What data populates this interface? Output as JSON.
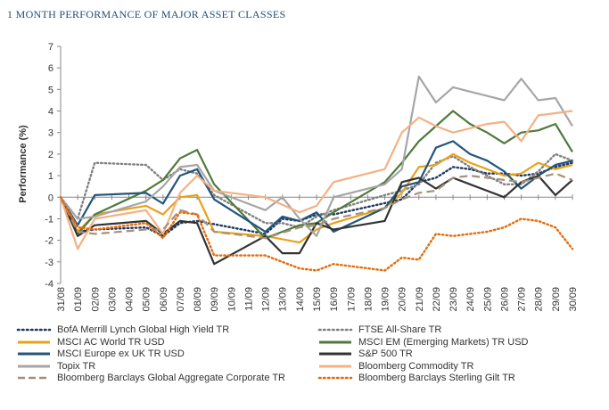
{
  "title": "1 MONTH PERFORMANCE OF MAJOR ASSET CLASSES",
  "chart_data": {
    "type": "line",
    "ylabel": "Performance (%)",
    "xlabel": "",
    "ylim": [
      -4,
      7
    ],
    "yticks": [
      -4,
      -3,
      -2,
      -1,
      0,
      1,
      2,
      3,
      4,
      5,
      6,
      7
    ],
    "grid": false,
    "legend_position": "bottom",
    "x": [
      "31/08",
      "01/09",
      "02/09",
      "03/09",
      "04/09",
      "05/09",
      "06/09",
      "07/09",
      "08/09",
      "09/09",
      "10/09",
      "11/09",
      "12/09",
      "13/09",
      "14/09",
      "15/09",
      "16/09",
      "17/09",
      "18/09",
      "19/09",
      "20/09",
      "21/09",
      "22/09",
      "23/09",
      "24/09",
      "25/09",
      "26/09",
      "27/09",
      "28/09",
      "29/09",
      "30/09"
    ],
    "series": [
      {
        "name": "BofA Merrill Lynch Global High Yield TR",
        "color": "#1f3864",
        "dash": "dotted",
        "points": [
          [
            0,
            0
          ],
          [
            1,
            -1.6
          ],
          [
            2,
            -1.5
          ],
          [
            5,
            -1.4
          ],
          [
            6,
            -1.8
          ],
          [
            7,
            -1.2
          ],
          [
            8,
            -1.1
          ],
          [
            12,
            -1.7
          ],
          [
            13,
            -1.0
          ],
          [
            14,
            -1.1
          ],
          [
            15,
            -0.8
          ],
          [
            16,
            -0.8
          ],
          [
            20,
            -0.1
          ],
          [
            21,
            0.7
          ],
          [
            22,
            0.9
          ],
          [
            23,
            1.4
          ],
          [
            24,
            1.3
          ],
          [
            25,
            1.1
          ],
          [
            26,
            1.1
          ],
          [
            27,
            1.0
          ],
          [
            28,
            1.1
          ],
          [
            29,
            1.4
          ],
          [
            30,
            1.6
          ]
        ]
      },
      {
        "name": "FTSE All-Share TR",
        "color": "#808080",
        "dash": "dotted",
        "points": [
          [
            0,
            0
          ],
          [
            1,
            -1.0
          ],
          [
            2,
            1.6
          ],
          [
            5,
            1.5
          ],
          [
            6,
            0.8
          ],
          [
            7,
            1.3
          ],
          [
            8,
            1.1
          ],
          [
            9,
            0.1
          ],
          [
            12,
            -1.2
          ],
          [
            13,
            -1.2
          ],
          [
            14,
            -1.4
          ],
          [
            15,
            -0.9
          ],
          [
            16,
            -0.6
          ],
          [
            19,
            0.1
          ],
          [
            20,
            0.3
          ],
          [
            21,
            0.6
          ],
          [
            22,
            1.6
          ],
          [
            23,
            1.9
          ],
          [
            24,
            1.4
          ],
          [
            25,
            1.0
          ],
          [
            26,
            0.6
          ],
          [
            27,
            0.6
          ],
          [
            28,
            1.2
          ],
          [
            29,
            2.0
          ],
          [
            30,
            1.7
          ]
        ]
      },
      {
        "name": "MSCI AC World TR USD",
        "color": "#e8a21a",
        "dash": "solid",
        "points": [
          [
            0,
            0
          ],
          [
            1,
            -1.6
          ],
          [
            2,
            -0.8
          ],
          [
            5,
            -0.4
          ],
          [
            6,
            -0.8
          ],
          [
            7,
            0.0
          ],
          [
            8,
            0.1
          ],
          [
            9,
            -1.6
          ],
          [
            12,
            -1.8
          ],
          [
            14,
            -2.1
          ],
          [
            15,
            -1.5
          ],
          [
            16,
            -1.2
          ],
          [
            19,
            -0.5
          ],
          [
            20,
            0.2
          ],
          [
            21,
            1.4
          ],
          [
            22,
            1.5
          ],
          [
            23,
            2.0
          ],
          [
            24,
            1.6
          ],
          [
            25,
            1.3
          ],
          [
            26,
            1.0
          ],
          [
            27,
            1.1
          ],
          [
            28,
            1.6
          ],
          [
            29,
            1.3
          ],
          [
            30,
            1.5
          ]
        ]
      },
      {
        "name": "MSCI EM (Emerging Markets) TR USD",
        "color": "#4e7a3a",
        "dash": "solid",
        "points": [
          [
            0,
            0
          ],
          [
            1,
            -1.7
          ],
          [
            2,
            -0.8
          ],
          [
            5,
            0.3
          ],
          [
            6,
            0.8
          ],
          [
            7,
            1.8
          ],
          [
            8,
            2.2
          ],
          [
            9,
            0.6
          ],
          [
            12,
            -1.9
          ],
          [
            13,
            -1.6
          ],
          [
            14,
            -1.3
          ],
          [
            15,
            -1.2
          ],
          [
            16,
            -0.7
          ],
          [
            19,
            0.7
          ],
          [
            20,
            1.6
          ],
          [
            21,
            2.6
          ],
          [
            22,
            3.3
          ],
          [
            23,
            4.0
          ],
          [
            24,
            3.4
          ],
          [
            25,
            3.0
          ],
          [
            26,
            2.5
          ],
          [
            27,
            3.0
          ],
          [
            28,
            3.1
          ],
          [
            29,
            3.4
          ],
          [
            30,
            2.1
          ]
        ]
      },
      {
        "name": "MSCI Europe ex UK TR USD",
        "color": "#24557a",
        "dash": "solid",
        "points": [
          [
            0,
            0
          ],
          [
            1,
            -1.3
          ],
          [
            2,
            0.1
          ],
          [
            5,
            0.2
          ],
          [
            6,
            -0.3
          ],
          [
            7,
            1.0
          ],
          [
            8,
            1.3
          ],
          [
            9,
            -0.1
          ],
          [
            12,
            -1.6
          ],
          [
            13,
            -0.9
          ],
          [
            14,
            -1.1
          ],
          [
            15,
            -0.7
          ],
          [
            16,
            -1.6
          ],
          [
            19,
            -0.5
          ],
          [
            20,
            0.5
          ],
          [
            21,
            0.7
          ],
          [
            22,
            2.3
          ],
          [
            23,
            2.6
          ],
          [
            24,
            2.0
          ],
          [
            25,
            1.7
          ],
          [
            26,
            1.2
          ],
          [
            27,
            0.4
          ],
          [
            28,
            1.0
          ],
          [
            29,
            1.5
          ],
          [
            30,
            1.7
          ]
        ]
      },
      {
        "name": "S&P 500 TR",
        "color": "#333333",
        "dash": "solid",
        "points": [
          [
            0,
            0
          ],
          [
            1,
            -1.8
          ],
          [
            2,
            -1.3
          ],
          [
            5,
            -1.1
          ],
          [
            6,
            -1.7
          ],
          [
            7,
            -1.1
          ],
          [
            8,
            -1.2
          ],
          [
            9,
            -3.1
          ],
          [
            12,
            -1.8
          ],
          [
            13,
            -2.6
          ],
          [
            14,
            -2.6
          ],
          [
            15,
            -1.2
          ],
          [
            16,
            -1.5
          ],
          [
            19,
            -1.1
          ],
          [
            20,
            0.7
          ],
          [
            21,
            0.9
          ],
          [
            22,
            0.4
          ],
          [
            23,
            0.9
          ],
          [
            24,
            0.6
          ],
          [
            25,
            0.3
          ],
          [
            26,
            0.0
          ],
          [
            27,
            0.7
          ],
          [
            28,
            1.0
          ],
          [
            29,
            0.1
          ],
          [
            30,
            0.8
          ]
        ]
      },
      {
        "name": "Topix TR",
        "color": "#a6a6a6",
        "dash": "solid",
        "points": [
          [
            0,
            0
          ],
          [
            1,
            -1.0
          ],
          [
            2,
            -0.9
          ],
          [
            5,
            -0.2
          ],
          [
            6,
            0.5
          ],
          [
            7,
            1.4
          ],
          [
            8,
            1.5
          ],
          [
            9,
            0.3
          ],
          [
            12,
            -0.6
          ],
          [
            13,
            0.0
          ],
          [
            14,
            -1.0
          ],
          [
            15,
            -1.8
          ],
          [
            16,
            0.0
          ],
          [
            19,
            0.6
          ],
          [
            20,
            1.3
          ],
          [
            21,
            5.6
          ],
          [
            22,
            4.4
          ],
          [
            23,
            5.1
          ],
          [
            24,
            4.9
          ],
          [
            25,
            4.7
          ],
          [
            26,
            4.5
          ],
          [
            27,
            5.5
          ],
          [
            28,
            4.5
          ],
          [
            29,
            4.6
          ],
          [
            30,
            3.3
          ]
        ]
      },
      {
        "name": "Bloomberg Commodity TR",
        "color": "#f4b183",
        "dash": "solid",
        "points": [
          [
            0,
            0
          ],
          [
            1,
            -2.4
          ],
          [
            2,
            -1.0
          ],
          [
            5,
            -0.6
          ],
          [
            6,
            -1.7
          ],
          [
            7,
            0.2
          ],
          [
            8,
            1.0
          ],
          [
            9,
            0.3
          ],
          [
            12,
            0.0
          ],
          [
            14,
            -0.7
          ],
          [
            15,
            -0.4
          ],
          [
            16,
            0.7
          ],
          [
            19,
            1.3
          ],
          [
            20,
            3.0
          ],
          [
            21,
            3.7
          ],
          [
            22,
            3.3
          ],
          [
            23,
            3.0
          ],
          [
            24,
            3.2
          ],
          [
            25,
            3.4
          ],
          [
            26,
            3.5
          ],
          [
            27,
            2.6
          ],
          [
            28,
            3.8
          ],
          [
            29,
            3.9
          ],
          [
            30,
            4.0
          ]
        ]
      },
      {
        "name": "Bloomberg Barclays Global Aggregate Corporate TR",
        "color": "#a7907a",
        "dash": "longdash",
        "points": [
          [
            0,
            0
          ],
          [
            1,
            -1.6
          ],
          [
            2,
            -1.7
          ],
          [
            5,
            -1.5
          ],
          [
            6,
            -1.5
          ],
          [
            7,
            -0.6
          ],
          [
            8,
            -0.8
          ],
          [
            9,
            -1.6
          ],
          [
            12,
            -1.9
          ],
          [
            14,
            -1.4
          ],
          [
            15,
            -1.3
          ],
          [
            16,
            -1.0
          ],
          [
            19,
            -0.5
          ],
          [
            20,
            -0.1
          ],
          [
            21,
            0.2
          ],
          [
            22,
            0.3
          ],
          [
            23,
            0.9
          ],
          [
            24,
            1.0
          ],
          [
            25,
            0.9
          ],
          [
            26,
            0.8
          ],
          [
            27,
            0.7
          ],
          [
            28,
            0.9
          ],
          [
            29,
            1.1
          ],
          [
            30,
            0.8
          ]
        ]
      },
      {
        "name": "Bloomberg Barclays Sterling Gilt TR",
        "color": "#e46c0a",
        "dash": "dotted",
        "points": [
          [
            0,
            0
          ],
          [
            1,
            -1.4
          ],
          [
            2,
            -1.5
          ],
          [
            5,
            -1.2
          ],
          [
            6,
            -1.9
          ],
          [
            7,
            -0.7
          ],
          [
            8,
            -0.8
          ],
          [
            9,
            -2.7
          ],
          [
            12,
            -2.7
          ],
          [
            14,
            -3.3
          ],
          [
            15,
            -3.4
          ],
          [
            16,
            -3.1
          ],
          [
            19,
            -3.4
          ],
          [
            20,
            -2.8
          ],
          [
            21,
            -2.9
          ],
          [
            22,
            -1.7
          ],
          [
            23,
            -1.8
          ],
          [
            24,
            -1.7
          ],
          [
            25,
            -1.6
          ],
          [
            26,
            -1.4
          ],
          [
            27,
            -1.0
          ],
          [
            28,
            -1.1
          ],
          [
            29,
            -1.4
          ],
          [
            30,
            -2.4
          ]
        ]
      }
    ]
  }
}
